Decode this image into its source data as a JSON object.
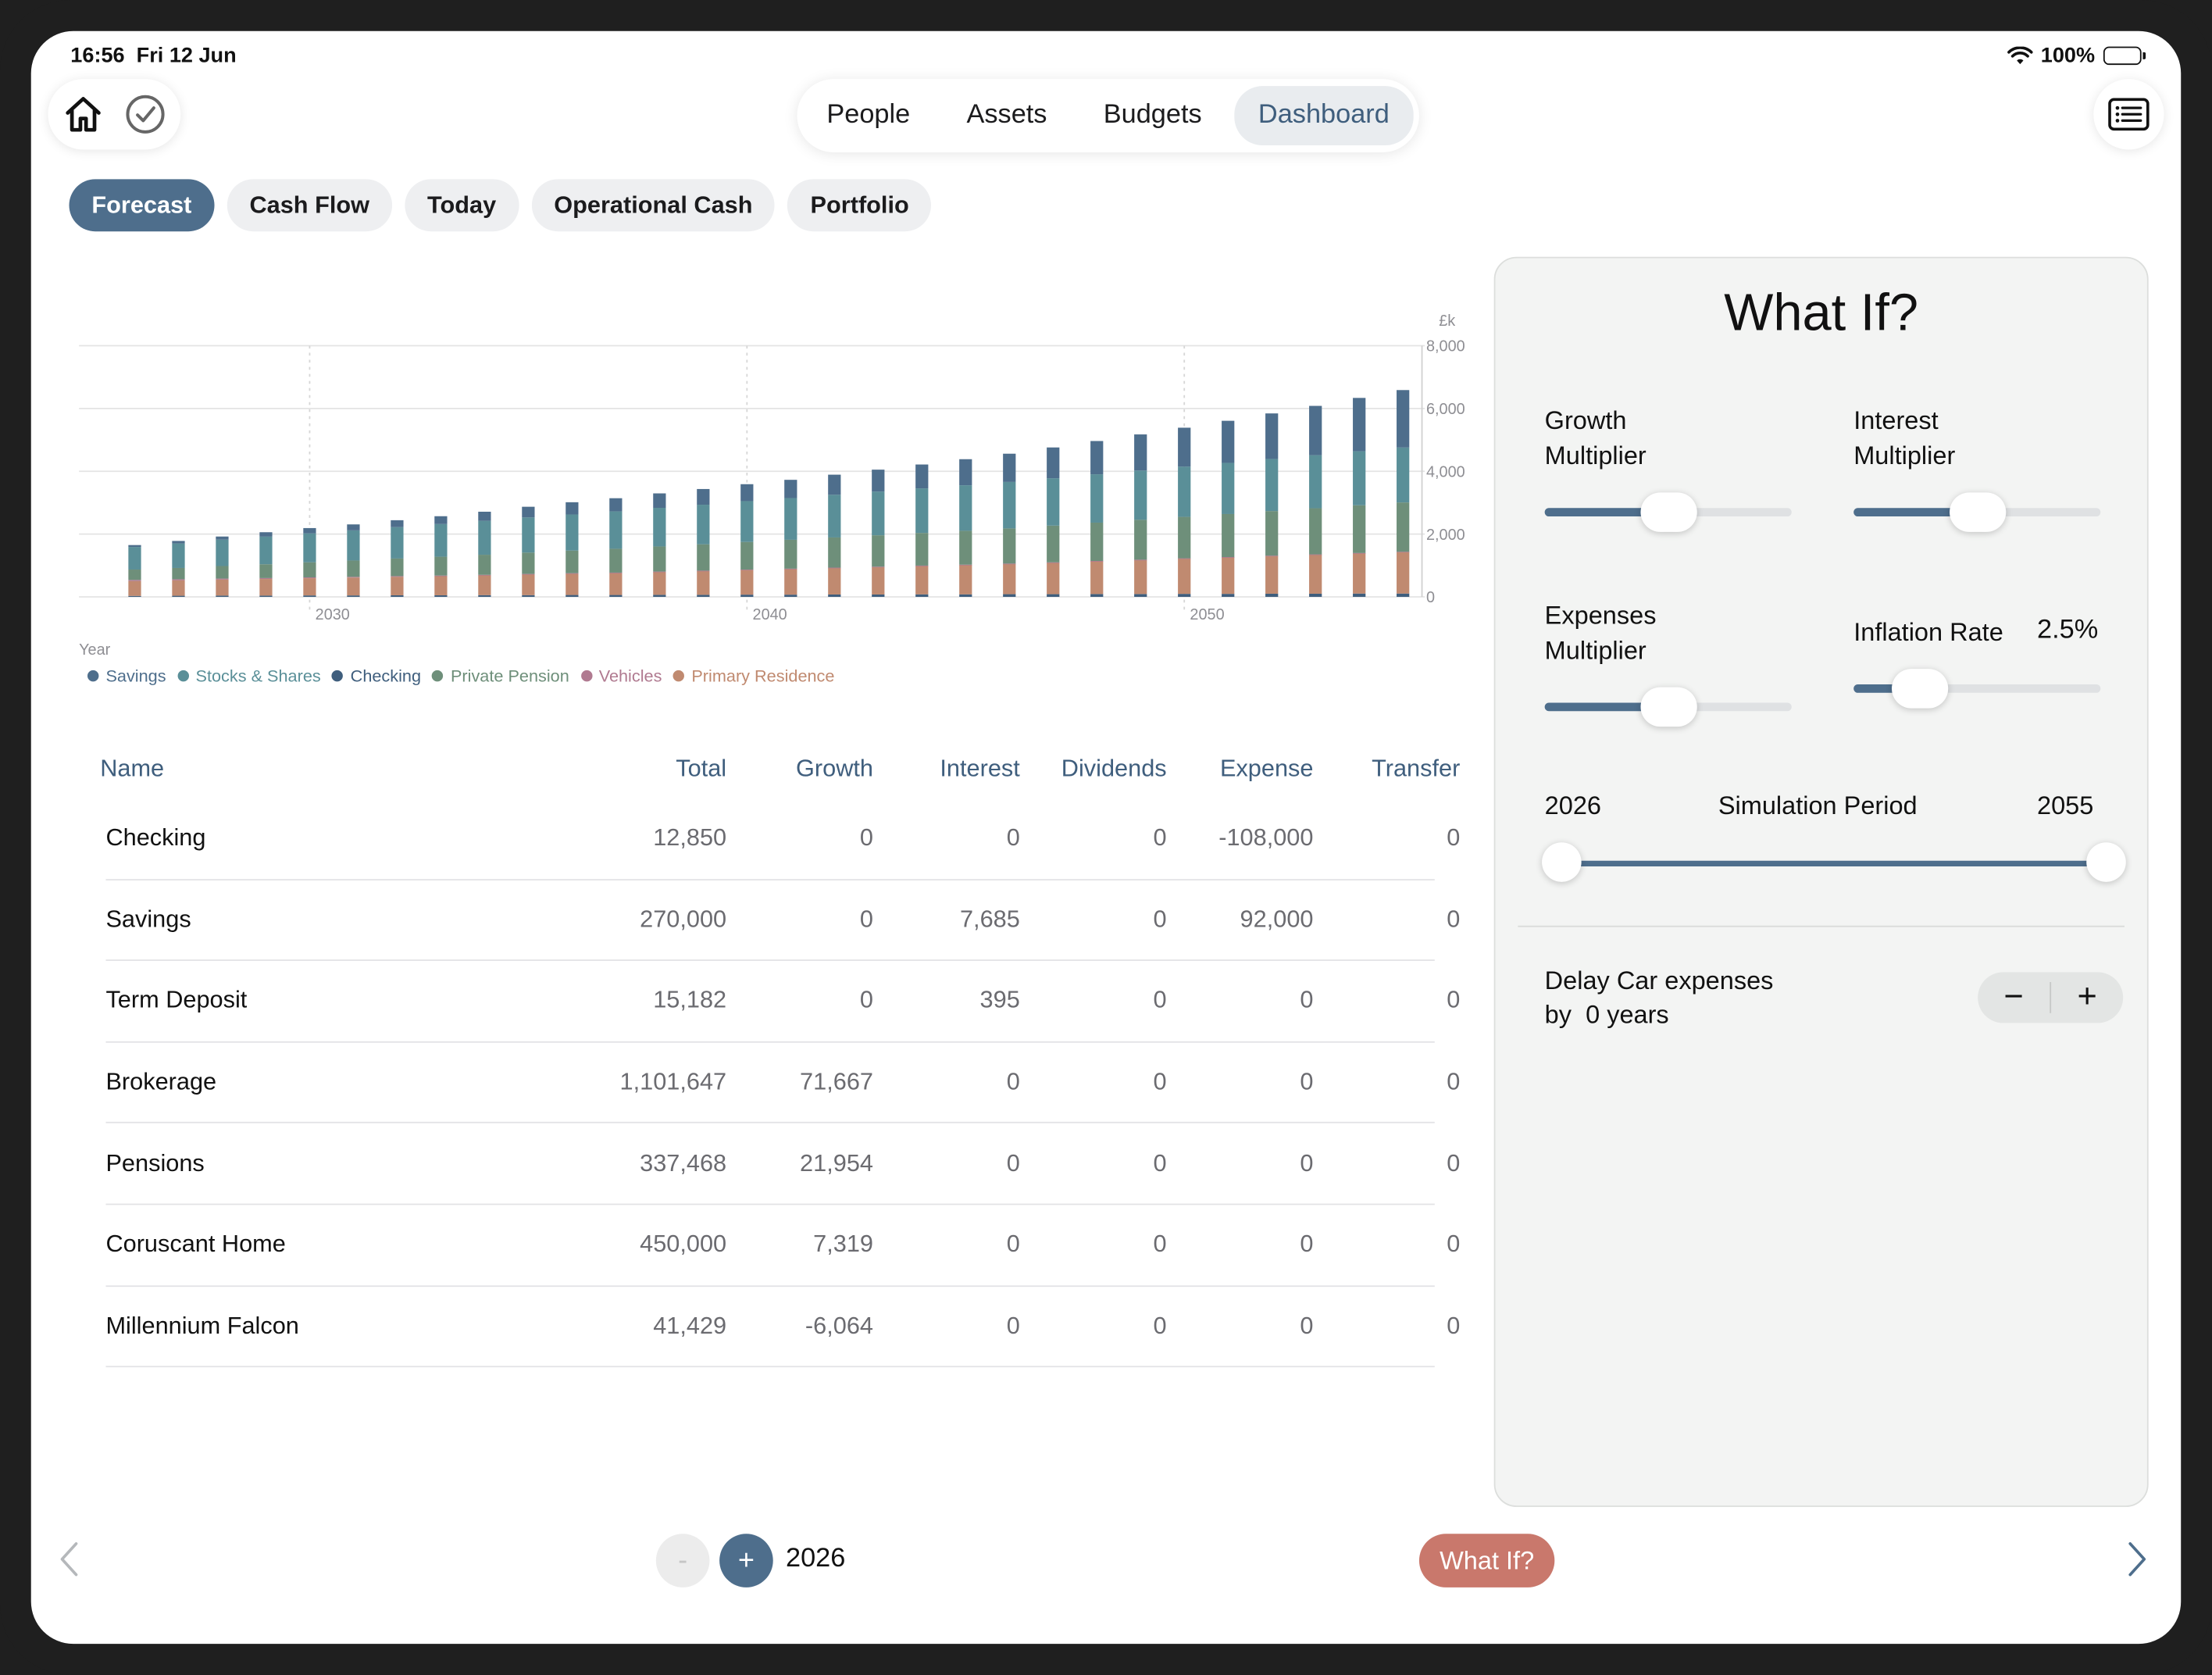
{
  "status_bar": {
    "time": "16:56",
    "date": "Fri 12 Jun",
    "battery": "100%",
    "wifi_icon": "wifi-icon"
  },
  "toolbar": {
    "home_icon": "home-icon",
    "check_icon": "checkmark-circle-icon",
    "list_icon": "list-icon"
  },
  "segments": [
    {
      "label": "People",
      "active": false
    },
    {
      "label": "Assets",
      "active": false
    },
    {
      "label": "Budgets",
      "active": false
    },
    {
      "label": "Dashboard",
      "active": true
    }
  ],
  "tabs": [
    {
      "label": "Forecast",
      "active": true
    },
    {
      "label": "Cash Flow",
      "active": false
    },
    {
      "label": "Today",
      "active": false
    },
    {
      "label": "Operational Cash",
      "active": false
    },
    {
      "label": "Portfolio",
      "active": false
    }
  ],
  "chart_data": {
    "type": "bar",
    "stacked": true,
    "x": [
      2026,
      2027,
      2028,
      2029,
      2030,
      2031,
      2032,
      2033,
      2034,
      2035,
      2036,
      2037,
      2038,
      2039,
      2040,
      2041,
      2042,
      2043,
      2044,
      2045,
      2046,
      2047,
      2048,
      2049,
      2050,
      2051,
      2052,
      2053,
      2054,
      2055
    ],
    "xticks": [
      "2030",
      "2040",
      "2050"
    ],
    "xlabel": "Year",
    "unit_label": "£k",
    "yticks": [
      "8,000",
      "6,000",
      "4,000",
      "2,000",
      "0"
    ],
    "ylim": [
      0,
      8000
    ],
    "grid": true,
    "legend_position": "bottom-left",
    "series": [
      {
        "name": "Savings",
        "color": "#4e6e8c",
        "values": [
          60,
          80,
          100,
          140,
          170,
          190,
          220,
          250,
          290,
          340,
          390,
          420,
          460,
          500,
          540,
          580,
          640,
          700,
          760,
          830,
          900,
          980,
          1060,
          1150,
          1240,
          1340,
          1450,
          1570,
          1700,
          1830
        ]
      },
      {
        "name": "Stocks & Shares",
        "color": "#5a8f98",
        "values": [
          720,
          780,
          840,
          880,
          920,
          960,
          1000,
          1040,
          1080,
          1120,
          1150,
          1190,
          1230,
          1260,
          1300,
          1330,
          1360,
          1390,
          1420,
          1450,
          1480,
          1510,
          1540,
          1570,
          1600,
          1630,
          1660,
          1690,
          1720,
          1750
        ]
      },
      {
        "name": "Checking",
        "color": "#3f5e7d",
        "values": [
          30,
          35,
          40,
          40,
          45,
          45,
          50,
          50,
          55,
          55,
          60,
          60,
          65,
          65,
          70,
          70,
          75,
          75,
          80,
          80,
          85,
          85,
          90,
          90,
          95,
          95,
          100,
          100,
          105,
          105
        ]
      },
      {
        "name": "Private Pension",
        "color": "#6e8f7a",
        "values": [
          330,
          360,
          400,
          440,
          480,
          520,
          560,
          600,
          640,
          680,
          720,
          760,
          800,
          840,
          880,
          920,
          960,
          1000,
          1040,
          1080,
          1120,
          1170,
          1220,
          1270,
          1320,
          1370,
          1420,
          1470,
          1520,
          1570
        ]
      },
      {
        "name": "Vehicles",
        "color": "#b07a90",
        "values": [
          40,
          36,
          32,
          29,
          26,
          23,
          21,
          19,
          17,
          15,
          14,
          12,
          11,
          10,
          9,
          8,
          7,
          7,
          6,
          5,
          5,
          4,
          4,
          4,
          3,
          3,
          3,
          3,
          2,
          2
        ]
      },
      {
        "name": "Primary Residence",
        "color": "#c08a70",
        "values": [
          470,
          490,
          510,
          530,
          550,
          570,
          590,
          610,
          630,
          660,
          680,
          700,
          730,
          760,
          790,
          820,
          850,
          880,
          910,
          940,
          970,
          1010,
          1050,
          1090,
          1130,
          1170,
          1210,
          1250,
          1290,
          1330
        ]
      }
    ]
  },
  "table": {
    "headers": [
      "Name",
      "Total",
      "Growth",
      "Interest",
      "Dividends",
      "Expense",
      "Transfer"
    ],
    "rows": [
      [
        "Checking",
        "12,850",
        "0",
        "0",
        "0",
        "-108,000",
        "0"
      ],
      [
        "Savings",
        "270,000",
        "0",
        "7,685",
        "0",
        "92,000",
        "0"
      ],
      [
        "Term Deposit",
        "15,182",
        "0",
        "395",
        "0",
        "0",
        "0"
      ],
      [
        "Brokerage",
        "1,101,647",
        "71,667",
        "0",
        "0",
        "0",
        "0"
      ],
      [
        "Pensions",
        "337,468",
        "21,954",
        "0",
        "0",
        "0",
        "0"
      ],
      [
        "Coruscant Home",
        "450,000",
        "7,319",
        "0",
        "0",
        "0",
        "0"
      ],
      [
        "Millennium Falcon",
        "41,429",
        "-6,064",
        "0",
        "0",
        "0",
        "0"
      ]
    ]
  },
  "whatif": {
    "title": "What If?",
    "growth_label_1": "Growth",
    "growth_label_2": "Multiplier",
    "growth_level": 0.5,
    "interest_label_1": "Interest",
    "interest_label_2": "Multiplier",
    "interest_level": 0.5,
    "expenses_label_1": "Expenses",
    "expenses_label_2": "Multiplier",
    "expenses_level": 0.5,
    "inflation_label": "Inflation Rate",
    "inflation_value": "2.5%",
    "inflation_level": 0.27,
    "period_label": "Simulation Period",
    "period_start": "2026",
    "period_end": "2055",
    "delay_label_1": "Delay Car expenses",
    "delay_label_2": "by  0 years",
    "stepper_minus": "−",
    "stepper_plus": "+"
  },
  "footer": {
    "prev_icon": "chevron-left-icon",
    "next_icon": "chevron-right-icon",
    "minus_label": "-",
    "plus_label": "+",
    "year": "2026",
    "whatif_button": "What If?"
  }
}
